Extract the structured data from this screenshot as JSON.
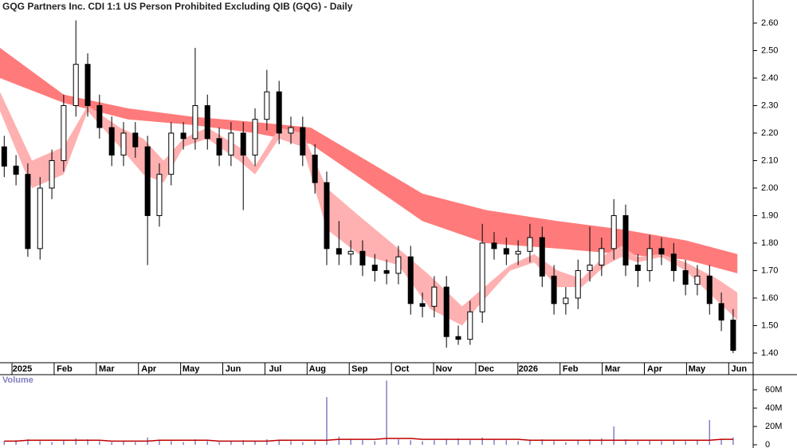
{
  "chart_data": {
    "type": "candlestick",
    "title": "GQG Partners Inc. CDI 1:1 US Person Prohibited Excluding QIB (GQG) - Daily",
    "xlim": [
      -0.53,
      17.24
    ],
    "xticks": [
      {
        "value": 0,
        "label": "2025"
      },
      {
        "value": 1,
        "label": "Feb"
      },
      {
        "value": 2,
        "label": "Mar"
      },
      {
        "value": 3,
        "label": "Apr"
      },
      {
        "value": 4,
        "label": "May"
      },
      {
        "value": 5,
        "label": "Jun"
      },
      {
        "value": 6,
        "label": "Jul"
      },
      {
        "value": 7,
        "label": "Aug"
      },
      {
        "value": 8,
        "label": "Sep"
      },
      {
        "value": 9,
        "label": "Oct"
      },
      {
        "value": 10,
        "label": "Nov"
      },
      {
        "value": 11,
        "label": "Dec"
      },
      {
        "value": 12,
        "label": "2026"
      },
      {
        "value": 13,
        "label": "Feb"
      },
      {
        "value": 14,
        "label": "Mar"
      },
      {
        "value": 15,
        "label": "Apr"
      },
      {
        "value": 16,
        "label": "May"
      },
      {
        "value": 17,
        "label": "Jun"
      }
    ],
    "ylim": [
      1.365,
      2.684
    ],
    "yticks": [
      {
        "value": 1.4,
        "label": "1.40"
      },
      {
        "value": 1.5,
        "label": "1.50"
      },
      {
        "value": 1.6,
        "label": "1.60"
      },
      {
        "value": 1.7,
        "label": "1.70"
      },
      {
        "value": 1.8,
        "label": "1.80"
      },
      {
        "value": 1.9,
        "label": "1.90"
      },
      {
        "value": 2.0,
        "label": "2.00"
      },
      {
        "value": 2.1,
        "label": "2.10"
      },
      {
        "value": 2.2,
        "label": "2.20"
      },
      {
        "value": 2.3,
        "label": "2.30"
      },
      {
        "value": 2.4,
        "label": "2.40"
      },
      {
        "value": 2.5,
        "label": "2.50"
      },
      {
        "value": 2.6,
        "label": "2.60"
      }
    ],
    "up_color": "#ffffff",
    "down_color": "#000000",
    "x": [
      -0.43,
      -0.15,
      0.13,
      0.42,
      0.7,
      0.98,
      1.27,
      1.55,
      1.83,
      2.12,
      2.4,
      2.68,
      2.97,
      3.25,
      3.53,
      3.82,
      4.1,
      4.39,
      4.67,
      4.95,
      5.24,
      5.52,
      5.8,
      6.09,
      6.37,
      6.65,
      6.94,
      7.22,
      7.51,
      7.79,
      8.07,
      8.36,
      8.64,
      8.92,
      9.21,
      9.49,
      9.77,
      10.06,
      10.34,
      10.62,
      10.91,
      11.19,
      11.48,
      11.76,
      12.04,
      12.33,
      12.61,
      12.89,
      13.18,
      13.46,
      13.74,
      14.03,
      14.31,
      14.6,
      14.88,
      15.16,
      15.45,
      15.73,
      16.01,
      16.3,
      16.58,
      16.86
    ],
    "open": [
      2.15,
      2.08,
      2.05,
      1.78,
      2.0,
      2.1,
      2.3,
      2.45,
      2.3,
      2.22,
      2.12,
      2.2,
      2.15,
      1.9,
      2.05,
      2.2,
      2.18,
      2.3,
      2.18,
      2.12,
      2.2,
      2.12,
      2.25,
      2.35,
      2.2,
      2.22,
      2.12,
      2.02,
      1.78,
      1.76,
      1.77,
      1.72,
      1.7,
      1.69,
      1.75,
      1.58,
      1.57,
      1.64,
      1.46,
      1.45,
      1.55,
      1.8,
      1.78,
      1.76,
      1.77,
      1.82,
      1.68,
      1.58,
      1.6,
      1.7,
      1.72,
      1.78,
      1.9,
      1.72,
      1.7,
      1.78,
      1.76,
      1.7,
      1.65,
      1.68,
      1.58,
      1.52
    ],
    "high": [
      2.19,
      2.12,
      2.09,
      2.04,
      2.14,
      2.34,
      2.61,
      2.49,
      2.34,
      2.26,
      2.24,
      2.24,
      2.19,
      2.09,
      2.24,
      2.24,
      2.51,
      2.34,
      2.22,
      2.24,
      2.24,
      2.29,
      2.43,
      2.39,
      2.26,
      2.26,
      2.16,
      2.06,
      1.88,
      1.81,
      1.81,
      1.76,
      1.74,
      1.79,
      1.79,
      1.62,
      1.68,
      1.68,
      1.5,
      1.59,
      1.87,
      1.84,
      1.82,
      1.81,
      1.87,
      1.86,
      1.72,
      1.64,
      1.74,
      1.86,
      1.82,
      1.96,
      1.94,
      1.76,
      1.83,
      1.82,
      1.8,
      1.74,
      1.72,
      1.72,
      1.62,
      1.56
    ],
    "low": [
      2.04,
      2.01,
      1.75,
      1.74,
      1.96,
      2.06,
      2.26,
      2.26,
      2.18,
      2.08,
      2.08,
      2.11,
      1.72,
      1.86,
      2.01,
      2.14,
      2.14,
      2.14,
      2.08,
      2.08,
      1.92,
      2.08,
      2.21,
      2.16,
      2.16,
      2.08,
      1.98,
      1.72,
      1.72,
      1.72,
      1.68,
      1.66,
      1.65,
      1.65,
      1.54,
      1.53,
      1.53,
      1.42,
      1.43,
      1.43,
      1.51,
      1.74,
      1.72,
      1.72,
      1.73,
      1.64,
      1.54,
      1.54,
      1.56,
      1.66,
      1.68,
      1.74,
      1.68,
      1.64,
      1.66,
      1.72,
      1.66,
      1.61,
      1.61,
      1.54,
      1.48,
      1.4
    ],
    "close": [
      2.08,
      2.05,
      1.78,
      2.0,
      2.1,
      2.3,
      2.45,
      2.3,
      2.22,
      2.12,
      2.2,
      2.15,
      1.9,
      2.05,
      2.2,
      2.18,
      2.3,
      2.18,
      2.12,
      2.2,
      2.12,
      2.25,
      2.35,
      2.2,
      2.22,
      2.12,
      2.02,
      1.78,
      1.76,
      1.77,
      1.72,
      1.7,
      1.69,
      1.75,
      1.58,
      1.57,
      1.64,
      1.46,
      1.45,
      1.55,
      1.8,
      1.78,
      1.76,
      1.77,
      1.82,
      1.68,
      1.58,
      1.6,
      1.7,
      1.72,
      1.78,
      1.9,
      1.72,
      1.7,
      1.78,
      1.76,
      1.7,
      1.65,
      1.68,
      1.58,
      1.52,
      1.41
    ],
    "bands": [
      {
        "color": "#ff7b7b",
        "x": [
          -0.53,
          0.98,
          2.5,
          4.01,
          5.52,
          6.84,
          8.17,
          9.49,
          11.0,
          12.7,
          14.22,
          15.73,
          16.96
        ],
        "upper": [
          2.51,
          2.34,
          2.29,
          2.26,
          2.24,
          2.22,
          2.1,
          1.98,
          1.92,
          1.88,
          1.85,
          1.81,
          1.76
        ],
        "lower": [
          2.4,
          2.31,
          2.25,
          2.23,
          2.2,
          2.16,
          2.02,
          1.88,
          1.8,
          1.78,
          1.76,
          1.74,
          1.69
        ]
      },
      {
        "color": "#ffb0b0",
        "x": [
          -0.53,
          0.23,
          0.98,
          1.55,
          2.31,
          2.87,
          3.35,
          3.82,
          4.39,
          5.14,
          5.52,
          6.09,
          6.65,
          7.22,
          7.98,
          8.92,
          9.68,
          10.43,
          10.81,
          11.57,
          12.14,
          12.7,
          13.27,
          13.84,
          14.22,
          14.59,
          15.16,
          15.73,
          16.48,
          16.96
        ],
        "upper": [
          2.35,
          2.1,
          2.15,
          2.3,
          2.22,
          2.18,
          2.1,
          2.18,
          2.22,
          2.15,
          2.08,
          2.22,
          2.2,
          2.0,
          1.9,
          1.78,
          1.68,
          1.57,
          1.62,
          1.72,
          1.76,
          1.7,
          1.67,
          1.76,
          1.79,
          1.75,
          1.76,
          1.73,
          1.67,
          1.62
        ],
        "lower": [
          2.28,
          2.0,
          2.05,
          2.28,
          2.15,
          2.05,
          2.02,
          2.15,
          2.18,
          2.1,
          2.05,
          2.18,
          2.15,
          1.85,
          1.76,
          1.72,
          1.56,
          1.5,
          1.57,
          1.7,
          1.73,
          1.64,
          1.64,
          1.72,
          1.75,
          1.73,
          1.75,
          1.7,
          1.59,
          1.52
        ]
      }
    ],
    "volume": {
      "label": "Volume",
      "color": "#8080c0",
      "ma_color": "#c00000",
      "ylim": [
        0,
        76.5
      ],
      "yticks": [
        {
          "value": 0,
          "label": "0"
        },
        {
          "value": 20,
          "label": "20M"
        },
        {
          "value": 40,
          "label": "40M"
        },
        {
          "value": 60,
          "label": "60M"
        }
      ],
      "values": [
        4,
        5,
        6,
        4,
        3,
        5,
        7,
        6,
        4,
        3,
        4,
        3,
        8,
        5,
        4,
        3,
        6,
        4,
        3,
        4,
        5,
        4,
        6,
        5,
        4,
        3,
        4,
        52,
        9,
        6,
        5,
        4,
        70,
        6,
        5,
        4,
        5,
        6,
        7,
        5,
        8,
        6,
        5,
        4,
        5,
        6,
        4,
        3,
        5,
        6,
        7,
        20,
        6,
        4,
        5,
        4,
        5,
        4,
        5,
        27,
        6,
        8
      ],
      "ma": [
        4,
        4,
        5,
        5,
        5,
        5,
        5,
        5,
        5,
        4,
        4,
        4,
        4,
        5,
        5,
        5,
        5,
        5,
        4,
        4,
        4,
        4,
        4,
        5,
        5,
        5,
        5,
        5,
        6,
        6,
        6,
        6,
        7,
        7,
        7,
        6,
        6,
        6,
        6,
        6,
        6,
        6,
        6,
        6,
        5,
        5,
        5,
        5,
        5,
        5,
        5,
        5,
        5,
        5,
        5,
        5,
        5,
        5,
        5,
        5,
        6,
        6
      ]
    }
  }
}
